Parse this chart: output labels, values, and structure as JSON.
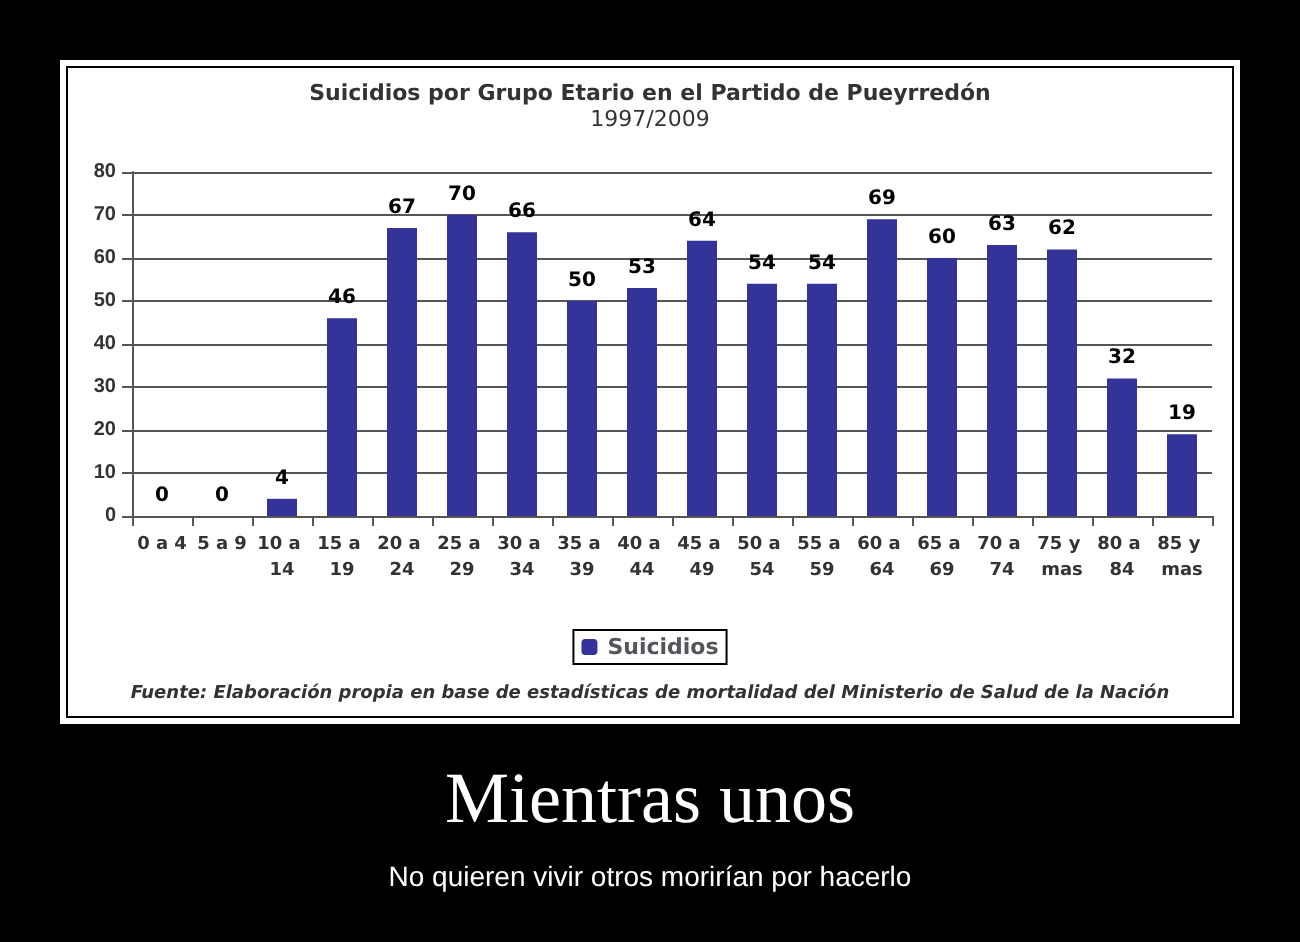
{
  "chart_data": {
    "type": "bar",
    "title": "Suicidios por Grupo Etario en el Partido de Pueyrredón",
    "subtitle": "1997/2009",
    "categories": [
      "0 a 4",
      "5 a 9",
      "10 a 14",
      "15 a 19",
      "20 a 24",
      "25 a 29",
      "30 a 34",
      "35 a 39",
      "40 a 44",
      "45 a 49",
      "50 a 54",
      "55 a 59",
      "60 a 64",
      "65 a 69",
      "70 a 74",
      "75 y mas",
      "80 a 84",
      "85 y mas"
    ],
    "series": [
      {
        "name": "Suicidios",
        "color": "#333399",
        "values": [
          0,
          0,
          4,
          46,
          67,
          70,
          66,
          50,
          53,
          64,
          54,
          54,
          69,
          60,
          63,
          62,
          32,
          19
        ]
      }
    ],
    "ylim": [
      0,
      80
    ],
    "yticks": [
      0,
      10,
      20,
      30,
      40,
      50,
      60,
      70,
      80
    ],
    "grid": "y",
    "legend": "bottom",
    "data_labels": true,
    "annotations": [
      "Fuente: Elaboración propia en base de estadísticas de mortalidad del Ministerio de Salud de la Nación",
      "Mientras unos",
      "No quieren vivir otros morirían por hacerlo"
    ]
  }
}
